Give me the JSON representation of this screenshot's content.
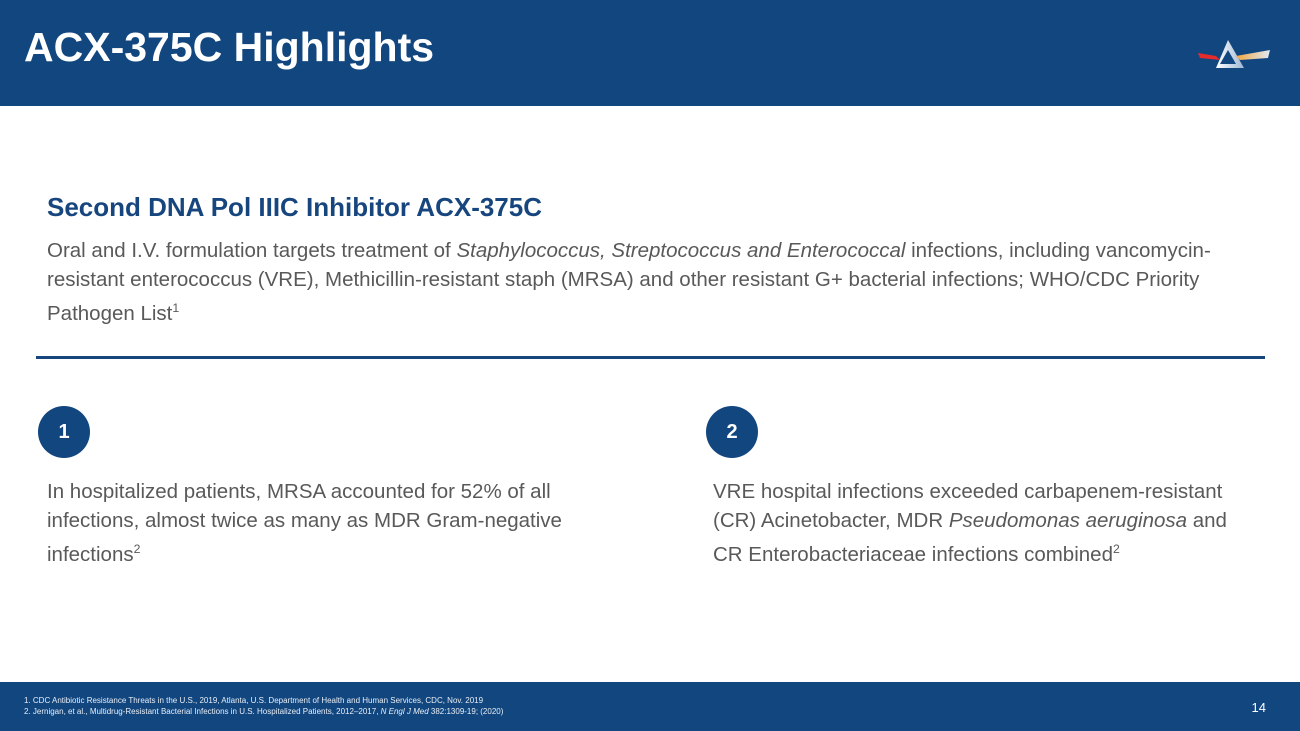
{
  "header": {
    "title": "ACX-375C Highlights",
    "logo": "Acurx triangle logo"
  },
  "section": {
    "heading": "Second DNA Pol IIIC Inhibitor ACX-375C",
    "intro_pre": "Oral and I.V. formulation targets treatment of ",
    "intro_italic": "Staphylococcus, Streptococcus and Enterococcal",
    "intro_post": " infections, including vancomycin-resistant enterococcus (VRE), Methicillin-resistant staph (MRSA) and other resistant G+ bacterial infections; WHO/CDC Priority Pathogen List",
    "intro_sup": "1"
  },
  "points": [
    {
      "number": "1",
      "text": "In hospitalized patients, MRSA accounted for 52% of all infections, almost twice as many as MDR Gram-negative infections",
      "sup": "2"
    },
    {
      "number": "2",
      "text_pre": "VRE hospital infections exceeded carbapenem-resistant (CR) Acinetobacter, MDR ",
      "text_italic": "Pseudomonas aeruginosa",
      "text_post": " and CR Enterobacteriaceae infections combined",
      "sup": "2"
    }
  ],
  "footer": {
    "ref1": "1. CDC Antibiotic Resistance Threats in the U.S., 2019, Atlanta, U.S. Department of Health and Human Services, CDC, Nov. 2019",
    "ref2_pre": "2. Jernigan, et al., Multidrug-Resistant Bacterial Infections in U.S. Hospitalized Patients, 2012–2017, ",
    "ref2_italic": "N Engl J Med",
    "ref2_post": " 382:1309-19; (2020)",
    "page": "14"
  }
}
